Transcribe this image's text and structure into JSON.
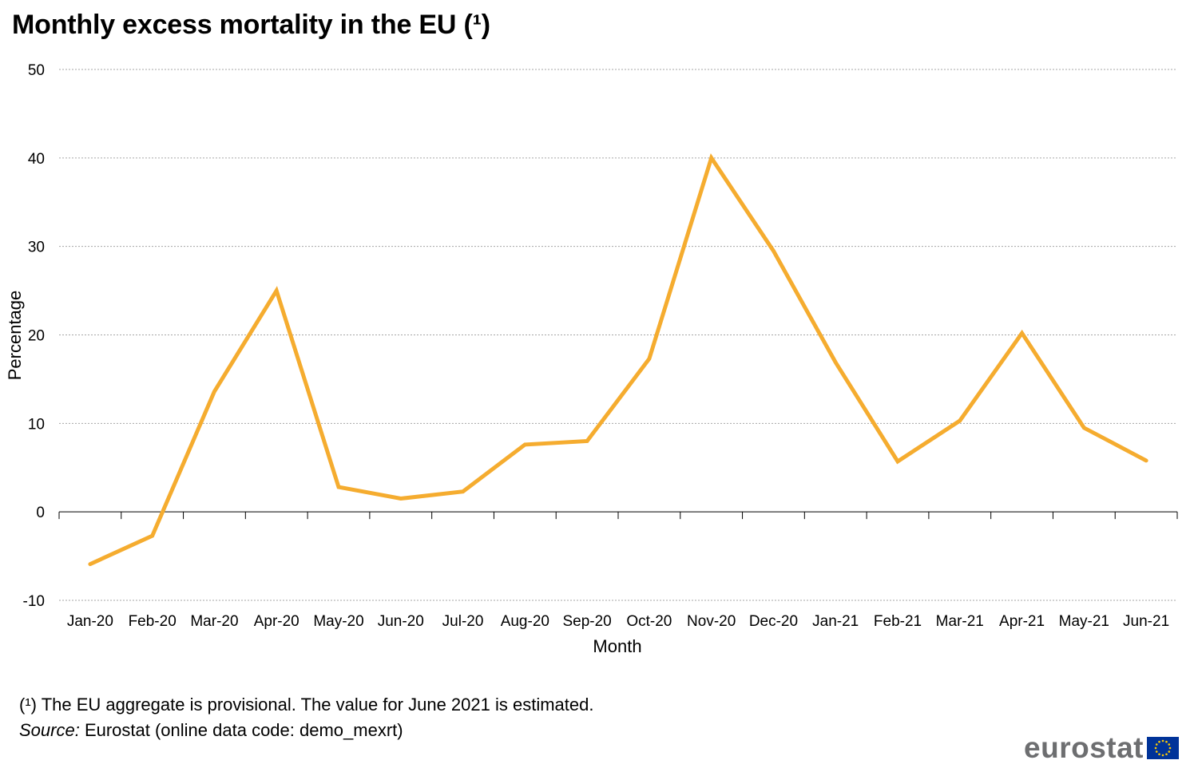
{
  "chart_data": {
    "type": "line",
    "title": "Monthly excess mortality in the EU (¹)",
    "xlabel": "Month",
    "ylabel": "Percentage",
    "ylim": [
      -10,
      50
    ],
    "yticks": [
      -10,
      0,
      10,
      20,
      30,
      40,
      50
    ],
    "grid": "horizontal dashed",
    "legend": "none",
    "categories": [
      "Jan-20",
      "Feb-20",
      "Mar-20",
      "Apr-20",
      "May-20",
      "Jun-20",
      "Jul-20",
      "Aug-20",
      "Sep-20",
      "Oct-20",
      "Nov-20",
      "Dec-20",
      "Jan-21",
      "Feb-21",
      "Mar-21",
      "Apr-21",
      "May-21",
      "Jun-21"
    ],
    "series": [
      {
        "color": "#f5ac2f",
        "values": [
          -5.9,
          -2.7,
          13.6,
          25.0,
          2.8,
          1.5,
          2.3,
          7.6,
          8.0,
          17.3,
          40.0,
          29.5,
          16.9,
          5.7,
          10.3,
          20.2,
          9.5,
          5.8
        ]
      }
    ]
  },
  "footnotes": {
    "note1": "(¹) The EU aggregate is provisional. The value for June 2021 is estimated.",
    "source_label": "Source:",
    "source_text": " Eurostat (online data code: demo_mexrt)"
  },
  "logo": {
    "text": "eurostat",
    "flag_icon": "eu-flag-icon",
    "flag_color": "#003399",
    "star_color": "#ffcc00"
  }
}
